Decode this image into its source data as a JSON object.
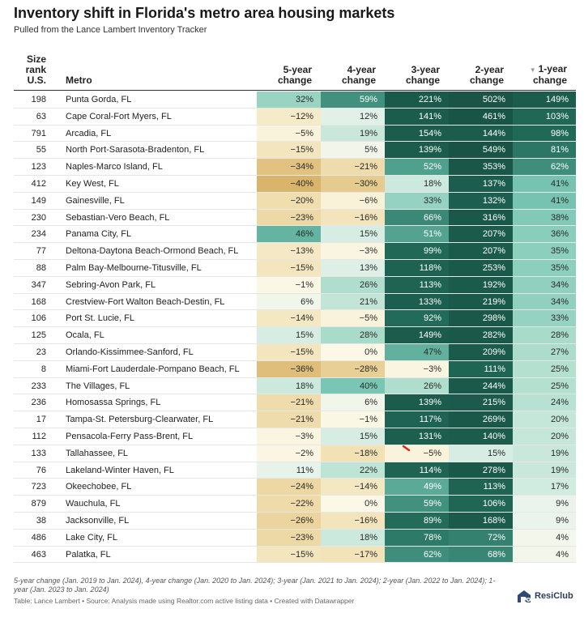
{
  "title": "Inventory shift in Florida's metro area housing markets",
  "subtitle": "Pulled from the Lance Lambert Inventory Tracker",
  "headers": {
    "rank": [
      "Size",
      "rank",
      "U.S."
    ],
    "metro": "Metro",
    "y5": [
      "5-year",
      "change"
    ],
    "y4": [
      "4-year",
      "change"
    ],
    "y3": [
      "3-year",
      "change"
    ],
    "y2": [
      "2-year",
      "change"
    ],
    "y1": [
      "1-year",
      "change"
    ],
    "sort_icon": "triangle-down-icon"
  },
  "chart_data": {
    "type": "table",
    "columns": [
      "Size rank U.S.",
      "Metro",
      "5-year change",
      "4-year change",
      "3-year change",
      "2-year change",
      "1-year change"
    ],
    "rows": [
      {
        "rank": "198",
        "metro": "Punta Gorda, FL",
        "y5": "32%",
        "y4": "59%",
        "y3": "221%",
        "y2": "502%",
        "y1": "149%"
      },
      {
        "rank": "63",
        "metro": "Cape Coral-Fort Myers, FL",
        "y5": "−12%",
        "y4": "12%",
        "y3": "141%",
        "y2": "461%",
        "y1": "103%"
      },
      {
        "rank": "791",
        "metro": "Arcadia, FL",
        "y5": "−5%",
        "y4": "19%",
        "y3": "154%",
        "y2": "144%",
        "y1": "98%"
      },
      {
        "rank": "55",
        "metro": "North Port-Sarasota-Bradenton, FL",
        "y5": "−15%",
        "y4": "5%",
        "y3": "139%",
        "y2": "549%",
        "y1": "81%"
      },
      {
        "rank": "123",
        "metro": "Naples-Marco Island, FL",
        "y5": "−34%",
        "y4": "−21%",
        "y3": "52%",
        "y2": "353%",
        "y1": "62%"
      },
      {
        "rank": "412",
        "metro": "Key West, FL",
        "y5": "−40%",
        "y4": "−30%",
        "y3": "18%",
        "y2": "137%",
        "y1": "41%"
      },
      {
        "rank": "149",
        "metro": "Gainesville, FL",
        "y5": "−20%",
        "y4": "−6%",
        "y3": "33%",
        "y2": "132%",
        "y1": "41%"
      },
      {
        "rank": "230",
        "metro": "Sebastian-Vero Beach, FL",
        "y5": "−23%",
        "y4": "−16%",
        "y3": "66%",
        "y2": "316%",
        "y1": "38%"
      },
      {
        "rank": "234",
        "metro": "Panama City, FL",
        "y5": "46%",
        "y4": "15%",
        "y3": "51%",
        "y2": "207%",
        "y1": "36%"
      },
      {
        "rank": "77",
        "metro": "Deltona-Daytona Beach-Ormond Beach, FL",
        "y5": "−13%",
        "y4": "−3%",
        "y3": "99%",
        "y2": "207%",
        "y1": "35%"
      },
      {
        "rank": "88",
        "metro": "Palm Bay-Melbourne-Titusville, FL",
        "y5": "−15%",
        "y4": "13%",
        "y3": "118%",
        "y2": "253%",
        "y1": "35%"
      },
      {
        "rank": "347",
        "metro": "Sebring-Avon Park, FL",
        "y5": "−1%",
        "y4": "26%",
        "y3": "113%",
        "y2": "192%",
        "y1": "34%"
      },
      {
        "rank": "168",
        "metro": "Crestview-Fort Walton Beach-Destin, FL",
        "y5": "6%",
        "y4": "21%",
        "y3": "133%",
        "y2": "219%",
        "y1": "34%"
      },
      {
        "rank": "106",
        "metro": "Port St. Lucie, FL",
        "y5": "−14%",
        "y4": "−5%",
        "y3": "92%",
        "y2": "298%",
        "y1": "33%"
      },
      {
        "rank": "125",
        "metro": "Ocala, FL",
        "y5": "15%",
        "y4": "28%",
        "y3": "149%",
        "y2": "282%",
        "y1": "28%"
      },
      {
        "rank": "23",
        "metro": "Orlando-Kissimmee-Sanford, FL",
        "y5": "−15%",
        "y4": "0%",
        "y3": "47%",
        "y2": "209%",
        "y1": "27%"
      },
      {
        "rank": "8",
        "metro": "Miami-Fort Lauderdale-Pompano Beach, FL",
        "y5": "−36%",
        "y4": "−28%",
        "y3": "−3%",
        "y2": "111%",
        "y1": "25%"
      },
      {
        "rank": "233",
        "metro": "The Villages, FL",
        "y5": "18%",
        "y4": "40%",
        "y3": "26%",
        "y2": "244%",
        "y1": "25%"
      },
      {
        "rank": "236",
        "metro": "Homosassa Springs, FL",
        "y5": "−21%",
        "y4": "6%",
        "y3": "139%",
        "y2": "215%",
        "y1": "24%"
      },
      {
        "rank": "17",
        "metro": "Tampa-St. Petersburg-Clearwater, FL",
        "y5": "−21%",
        "y4": "−1%",
        "y3": "117%",
        "y2": "269%",
        "y1": "20%"
      },
      {
        "rank": "112",
        "metro": "Pensacola-Ferry Pass-Brent, FL",
        "y5": "−3%",
        "y4": "15%",
        "y3": "131%",
        "y2": "140%",
        "y1": "20%"
      },
      {
        "rank": "133",
        "metro": "Tallahassee, FL",
        "y5": "−2%",
        "y4": "−18%",
        "y3": "−5%",
        "y2": "15%",
        "y1": "19%"
      },
      {
        "rank": "76",
        "metro": "Lakeland-Winter Haven, FL",
        "y5": "11%",
        "y4": "22%",
        "y3": "114%",
        "y2": "278%",
        "y1": "19%"
      },
      {
        "rank": "723",
        "metro": "Okeechobee, FL",
        "y5": "−24%",
        "y4": "−14%",
        "y3": "49%",
        "y2": "113%",
        "y1": "17%"
      },
      {
        "rank": "879",
        "metro": "Wauchula, FL",
        "y5": "−22%",
        "y4": "0%",
        "y3": "59%",
        "y2": "106%",
        "y1": "9%"
      },
      {
        "rank": "38",
        "metro": "Jacksonville, FL",
        "y5": "−26%",
        "y4": "−16%",
        "y3": "89%",
        "y2": "168%",
        "y1": "9%"
      },
      {
        "rank": "486",
        "metro": "Lake City, FL",
        "y5": "−23%",
        "y4": "18%",
        "y3": "78%",
        "y2": "72%",
        "y1": "4%"
      },
      {
        "rank": "463",
        "metro": "Palatka, FL",
        "y5": "−15%",
        "y4": "−17%",
        "y3": "62%",
        "y2": "68%",
        "y1": "4%"
      }
    ]
  },
  "footnote": "5-year change (Jan. 2019 to Jan. 2024), 4-year change (Jan. 2020 to Jan. 2024); 3-year (Jan. 2021 to Jan. 2024); 2-year (Jan. 2022 to Jan. 2024); 1-year (Jan. 2023 to Jan. 2024)",
  "source": "Table: Lance Lambert • Source: Analysis made using Realtor.com active listing data • Created with Datawrapper",
  "logo": {
    "text": "ResiClub",
    "icon": "resiclub-logo-icon"
  },
  "colors": {
    "neg_strong": "#d9b872",
    "neg_light": "#faf4dc",
    "pos_light": "#e8f5ed",
    "pos_mid": "#8fd2c0",
    "pos_teal": "#4a9e8c",
    "pos_dark": "#1d5e4f"
  }
}
